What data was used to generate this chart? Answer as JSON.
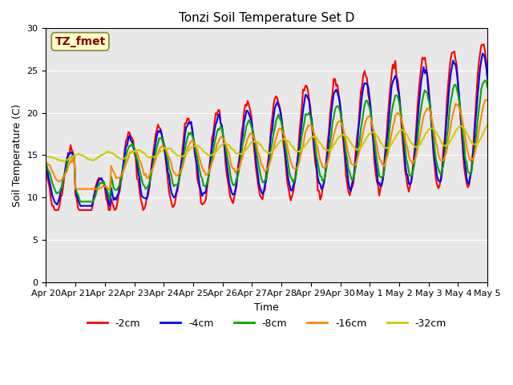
{
  "title": "Tonzi Soil Temperature Set D",
  "xlabel": "Time",
  "ylabel": "Soil Temperature (C)",
  "ylim": [
    0,
    30
  ],
  "series_labels": [
    "-2cm",
    "-4cm",
    "-8cm",
    "-16cm",
    "-32cm"
  ],
  "series_colors": [
    "#ff0000",
    "#0000ff",
    "#00aa00",
    "#ff8800",
    "#cccc00"
  ],
  "line_widths": [
    1.5,
    1.5,
    1.5,
    1.5,
    1.5
  ],
  "bg_color": "#e8e8e8",
  "annotation_text": "TZ_fmet",
  "annotation_bg": "#ffffcc",
  "annotation_border": "#888833",
  "annotation_text_color": "#880000",
  "tick_dates": [
    "Apr 20",
    "Apr 21",
    "Apr 22",
    "Apr 23",
    "Apr 24",
    "Apr 25",
    "Apr 26",
    "Apr 27",
    "Apr 28",
    "Apr 29",
    "Apr 30",
    "May 1",
    "May 2",
    "May 3",
    "May 4",
    "May 5"
  ]
}
